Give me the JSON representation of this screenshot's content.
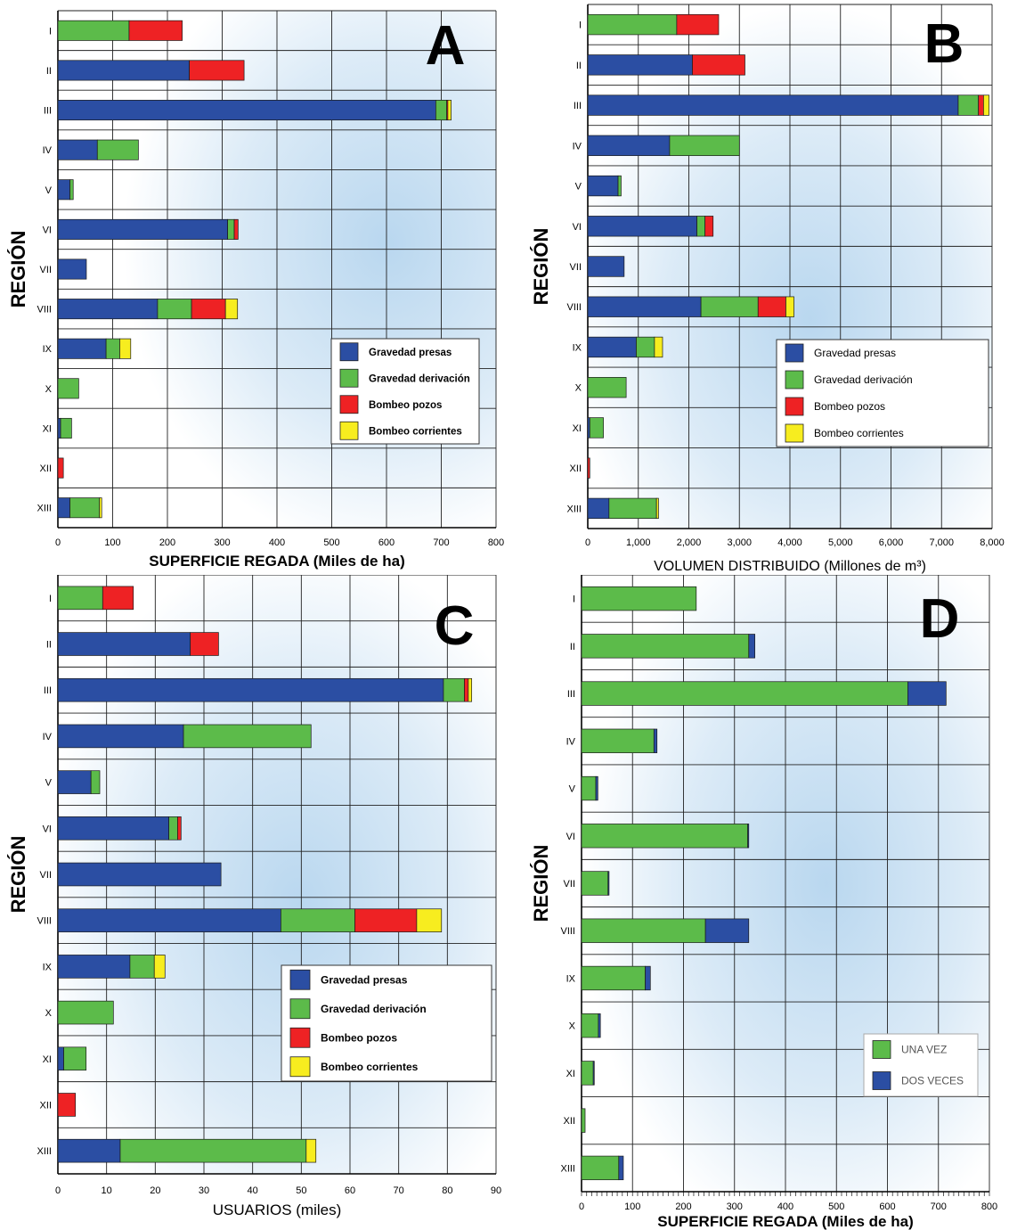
{
  "colors": {
    "gravedad_presas": "#2b4ea3",
    "gravedad_derivacion": "#5cbb4a",
    "bombeo_pozos": "#ee2224",
    "bombeo_corrientes": "#f7ed1f",
    "una_vez": "#5cbb4a",
    "dos_veces": "#2b4ea3",
    "grid": "#222222"
  },
  "chart_data": [
    {
      "id": "A",
      "type": "bar",
      "orientation": "horizontal",
      "stacked": true,
      "letter": "A",
      "xlabel": "SUPERFICIE REGADA (Miles de ha)",
      "ylabel": "REGIÓN",
      "xlim": [
        0,
        800
      ],
      "xticks": [
        "0",
        "100",
        "200",
        "300",
        "400",
        "500",
        "600",
        "700",
        "800"
      ],
      "categories": [
        "I",
        "II",
        "III",
        "IV",
        "V",
        "VI",
        "VII",
        "VIII",
        "IX",
        "X",
        "XI",
        "XII",
        "XIII"
      ],
      "series": [
        {
          "name": "Gravedad presas",
          "color_key": "gravedad_presas",
          "values": [
            0,
            240,
            690,
            72,
            22,
            310,
            52,
            182,
            88,
            0,
            5,
            0,
            22
          ]
        },
        {
          "name": "Gravedad derivación",
          "color_key": "gravedad_derivacion",
          "values": [
            130,
            0,
            20,
            75,
            6,
            12,
            0,
            62,
            25,
            38,
            20,
            0,
            54
          ]
        },
        {
          "name": "Bombeo pozos",
          "color_key": "bombeo_pozos",
          "values": [
            97,
            100,
            2,
            0,
            0,
            7,
            0,
            62,
            0,
            0,
            0,
            10,
            0
          ]
        },
        {
          "name": "Bombeo corrientes",
          "color_key": "bombeo_corrientes",
          "values": [
            0,
            0,
            6,
            0,
            0,
            0,
            0,
            22,
            20,
            0,
            0,
            0,
            4
          ]
        }
      ],
      "legend": [
        "Gravedad presas",
        "Gravedad derivación",
        "Bombeo pozos",
        "Bombeo corrientes"
      ],
      "legend_position": "lower-right"
    },
    {
      "id": "B",
      "type": "bar",
      "orientation": "horizontal",
      "stacked": true,
      "letter": "B",
      "xlabel": "VOLUMEN DISTRIBUIDO (Millones de m³)",
      "ylabel": "REGIÓN",
      "xlim": [
        0,
        8000
      ],
      "xticks": [
        "0",
        "1,000",
        "2,000",
        "3,000",
        "4,000",
        "5,000",
        "6,000",
        "7,000",
        "8,000"
      ],
      "categories": [
        "I",
        "II",
        "III",
        "IV",
        "V",
        "VI",
        "VII",
        "VIII",
        "IX",
        "X",
        "XI",
        "XII",
        "XIII"
      ],
      "series": [
        {
          "name": "Gravedad presas",
          "color_key": "gravedad_presas",
          "values": [
            0,
            2070,
            7330,
            1620,
            600,
            2160,
            720,
            2240,
            960,
            0,
            40,
            0,
            420
          ]
        },
        {
          "name": "Gravedad derivación",
          "color_key": "gravedad_derivacion",
          "values": [
            1760,
            0,
            400,
            1380,
            60,
            160,
            0,
            1130,
            360,
            760,
            270,
            0,
            940
          ]
        },
        {
          "name": "Bombeo pozos",
          "color_key": "bombeo_pozos",
          "values": [
            830,
            1040,
            100,
            0,
            0,
            160,
            0,
            550,
            0,
            0,
            0,
            40,
            0
          ]
        },
        {
          "name": "Bombeo corrientes",
          "color_key": "bombeo_corrientes",
          "values": [
            0,
            0,
            110,
            0,
            0,
            0,
            0,
            160,
            160,
            0,
            0,
            0,
            40
          ]
        }
      ],
      "legend": [
        "Gravedad presas",
        "Gravedad derivación",
        "Bombeo pozos",
        "Bombeo corrientes"
      ],
      "legend_position": "lower-right"
    },
    {
      "id": "C",
      "type": "bar",
      "orientation": "horizontal",
      "stacked": true,
      "letter": "C",
      "xlabel": "USUARIOS (miles)",
      "ylabel": "REGIÓN",
      "xlim": [
        0,
        90
      ],
      "xticks": [
        "0",
        "10",
        "20",
        "30",
        "40",
        "50",
        "60",
        "70",
        "80",
        "90"
      ],
      "categories": [
        "I",
        "II",
        "III",
        "IV",
        "V",
        "VI",
        "VII",
        "VIII",
        "IX",
        "X",
        "XI",
        "XII",
        "XIII"
      ],
      "series": [
        {
          "name": "Gravedad presas",
          "color_key": "gravedad_presas",
          "values": [
            0,
            27.2,
            79.2,
            25.8,
            6.8,
            22.8,
            33.5,
            45.8,
            14.8,
            0,
            1.2,
            0,
            12.8
          ]
        },
        {
          "name": "Gravedad derivación",
          "color_key": "gravedad_derivacion",
          "values": [
            9.2,
            0,
            4.3,
            26.2,
            1.8,
            1.8,
            0,
            15.2,
            5,
            11.4,
            4.6,
            0,
            38.2
          ]
        },
        {
          "name": "Bombeo pozos",
          "color_key": "bombeo_pozos",
          "values": [
            6.3,
            5.8,
            0.8,
            0,
            0,
            0.7,
            0,
            12.7,
            0,
            0,
            0,
            3.6,
            0
          ]
        },
        {
          "name": "Bombeo corrientes",
          "color_key": "bombeo_corrientes",
          "values": [
            0,
            0,
            0.7,
            0,
            0,
            0,
            0,
            5.1,
            2.2,
            0,
            0,
            0,
            2
          ]
        }
      ],
      "legend": [
        "Gravedad presas",
        "Gravedad derivación",
        "Bombeo pozos",
        "Bombeo corrientes"
      ],
      "legend_position": "lower-right"
    },
    {
      "id": "D",
      "type": "bar",
      "orientation": "horizontal",
      "stacked": true,
      "letter": "D",
      "xlabel": "SUPERFICIE REGADA (Miles de ha)",
      "ylabel": "REGIÓN",
      "xlim": [
        0,
        800
      ],
      "xticks": [
        "0",
        "100",
        "200",
        "300",
        "400",
        "500",
        "600",
        "700",
        "800"
      ],
      "categories": [
        "I",
        "II",
        "III",
        "IV",
        "V",
        "VI",
        "VII",
        "VIII",
        "IX",
        "X",
        "XI",
        "XII",
        "XIII"
      ],
      "series": [
        {
          "name": "UNA VEZ",
          "color_key": "una_vez",
          "values": [
            225,
            328,
            640,
            142,
            28,
            326,
            52,
            243,
            125,
            33,
            23,
            7,
            73
          ]
        },
        {
          "name": "DOS VECES",
          "color_key": "dos_veces",
          "values": [
            0,
            12,
            75,
            6,
            4,
            2,
            2,
            85,
            10,
            4,
            2,
            0,
            9
          ]
        }
      ],
      "legend": [
        "UNA VEZ",
        "DOS VECES"
      ],
      "legend_position": "lower-right"
    }
  ]
}
